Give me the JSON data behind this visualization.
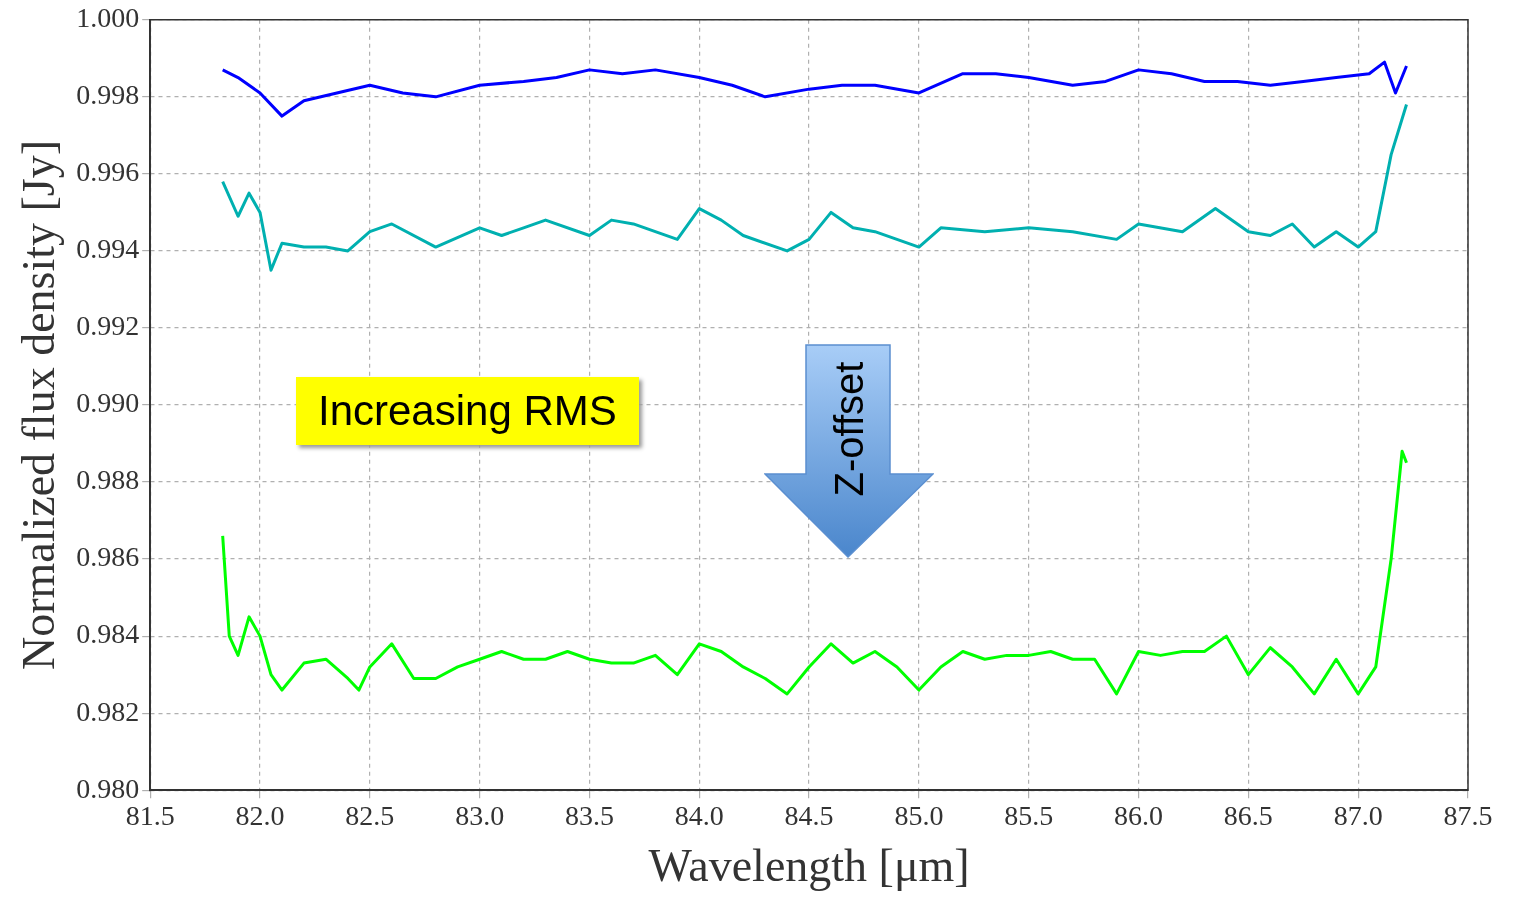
{
  "chart_data": {
    "type": "line",
    "xlabel": "Wavelength [μm]",
    "ylabel": "Normalized flux density [Jy]",
    "xlim": [
      81.5,
      87.5
    ],
    "xticks": [
      {
        "value": 81.5,
        "label": "81.5"
      },
      {
        "value": 82,
        "label": "82.0"
      },
      {
        "value": 82.5,
        "label": "82.5"
      },
      {
        "value": 83,
        "label": "83.0"
      },
      {
        "value": 83.5,
        "label": "83.5"
      },
      {
        "value": 84,
        "label": "84.0"
      },
      {
        "value": 84.5,
        "label": "84.5"
      },
      {
        "value": 85,
        "label": "85.0"
      },
      {
        "value": 85.5,
        "label": "85.5"
      },
      {
        "value": 86,
        "label": "86.0"
      },
      {
        "value": 86.5,
        "label": "86.5"
      },
      {
        "value": 87,
        "label": "87.0"
      },
      {
        "value": 87.5,
        "label": "87.5"
      }
    ],
    "ylim": [
      0.98,
      1.0
    ],
    "yticks": [
      {
        "value": 0.98,
        "label": "0.980"
      },
      {
        "value": 0.982,
        "label": "0.982"
      },
      {
        "value": 0.984,
        "label": "0.984"
      },
      {
        "value": 0.986,
        "label": "0.986"
      },
      {
        "value": 0.988,
        "label": "0.988"
      },
      {
        "value": 0.99,
        "label": "0.990"
      },
      {
        "value": 0.992,
        "label": "0.992"
      },
      {
        "value": 0.994,
        "label": "0.994"
      },
      {
        "value": 0.996,
        "label": "0.996"
      },
      {
        "value": 0.998,
        "label": "0.998"
      },
      {
        "value": 1.0,
        "label": "1.000"
      }
    ],
    "grid": true,
    "marker": "none",
    "line_style": "solid",
    "annotations": [
      "Increasing RMS",
      "Z-offset"
    ],
    "series": [
      {
        "color": "#0000ff",
        "x": [
          81.83,
          81.9,
          82.0,
          82.1,
          82.2,
          82.35,
          82.5,
          82.65,
          82.8,
          83.0,
          83.2,
          83.35,
          83.5,
          83.65,
          83.8,
          84.0,
          84.15,
          84.3,
          84.5,
          84.65,
          84.8,
          85.0,
          85.2,
          85.35,
          85.5,
          85.7,
          85.85,
          86.0,
          86.15,
          86.3,
          86.45,
          86.6,
          86.75,
          86.9,
          87.05,
          87.12,
          87.17,
          87.22
        ],
        "values": [
          0.9987,
          0.9985,
          0.9981,
          0.9975,
          0.9979,
          0.9981,
          0.9983,
          0.9981,
          0.998,
          0.9983,
          0.9984,
          0.9985,
          0.9987,
          0.9986,
          0.9987,
          0.9985,
          0.9983,
          0.998,
          0.9982,
          0.9983,
          0.9983,
          0.9981,
          0.9986,
          0.9986,
          0.9985,
          0.9983,
          0.9984,
          0.9987,
          0.9986,
          0.9984,
          0.9984,
          0.9983,
          0.9984,
          0.9985,
          0.9986,
          0.9989,
          0.9981,
          0.9988
        ]
      },
      {
        "color": "#00b0b0",
        "x": [
          81.83,
          81.9,
          81.95,
          82.0,
          82.05,
          82.1,
          82.2,
          82.3,
          82.4,
          82.5,
          82.6,
          82.8,
          83.0,
          83.1,
          83.2,
          83.3,
          83.5,
          83.6,
          83.7,
          83.9,
          84.0,
          84.1,
          84.2,
          84.4,
          84.5,
          84.6,
          84.7,
          84.8,
          85.0,
          85.1,
          85.3,
          85.5,
          85.7,
          85.9,
          86.0,
          86.2,
          86.35,
          86.5,
          86.6,
          86.7,
          86.8,
          86.9,
          87.0,
          87.08,
          87.15,
          87.22
        ],
        "values": [
          0.9958,
          0.9949,
          0.9955,
          0.995,
          0.9935,
          0.9942,
          0.9941,
          0.9941,
          0.994,
          0.9945,
          0.9947,
          0.9941,
          0.9946,
          0.9944,
          0.9946,
          0.9948,
          0.9944,
          0.9948,
          0.9947,
          0.9943,
          0.9951,
          0.9948,
          0.9944,
          0.994,
          0.9943,
          0.995,
          0.9946,
          0.9945,
          0.9941,
          0.9946,
          0.9945,
          0.9946,
          0.9945,
          0.9943,
          0.9947,
          0.9945,
          0.9951,
          0.9945,
          0.9944,
          0.9947,
          0.9941,
          0.9945,
          0.9941,
          0.9945,
          0.9965,
          0.9978
        ]
      },
      {
        "color": "#00ff00",
        "x": [
          81.83,
          81.86,
          81.9,
          81.95,
          82.0,
          82.05,
          82.1,
          82.2,
          82.3,
          82.4,
          82.45,
          82.5,
          82.6,
          82.7,
          82.8,
          82.9,
          83.0,
          83.1,
          83.2,
          83.3,
          83.4,
          83.5,
          83.6,
          83.7,
          83.8,
          83.9,
          84.0,
          84.1,
          84.2,
          84.3,
          84.4,
          84.5,
          84.6,
          84.7,
          84.8,
          84.9,
          85.0,
          85.1,
          85.2,
          85.3,
          85.4,
          85.5,
          85.6,
          85.7,
          85.8,
          85.9,
          86.0,
          86.1,
          86.2,
          86.3,
          86.4,
          86.5,
          86.6,
          86.7,
          86.8,
          86.9,
          87.0,
          87.08,
          87.15,
          87.2,
          87.22
        ],
        "values": [
          0.9866,
          0.984,
          0.9835,
          0.9845,
          0.984,
          0.983,
          0.9826,
          0.9833,
          0.9834,
          0.9829,
          0.9826,
          0.9832,
          0.9838,
          0.9829,
          0.9829,
          0.9832,
          0.9834,
          0.9836,
          0.9834,
          0.9834,
          0.9836,
          0.9834,
          0.9833,
          0.9833,
          0.9835,
          0.983,
          0.9838,
          0.9836,
          0.9832,
          0.9829,
          0.9825,
          0.9832,
          0.9838,
          0.9833,
          0.9836,
          0.9832,
          0.9826,
          0.9832,
          0.9836,
          0.9834,
          0.9835,
          0.9835,
          0.9836,
          0.9834,
          0.9834,
          0.9825,
          0.9836,
          0.9835,
          0.9836,
          0.9836,
          0.984,
          0.983,
          0.9837,
          0.9832,
          0.9825,
          0.9834,
          0.9825,
          0.9832,
          0.986,
          0.9888,
          0.9885
        ]
      }
    ]
  }
}
